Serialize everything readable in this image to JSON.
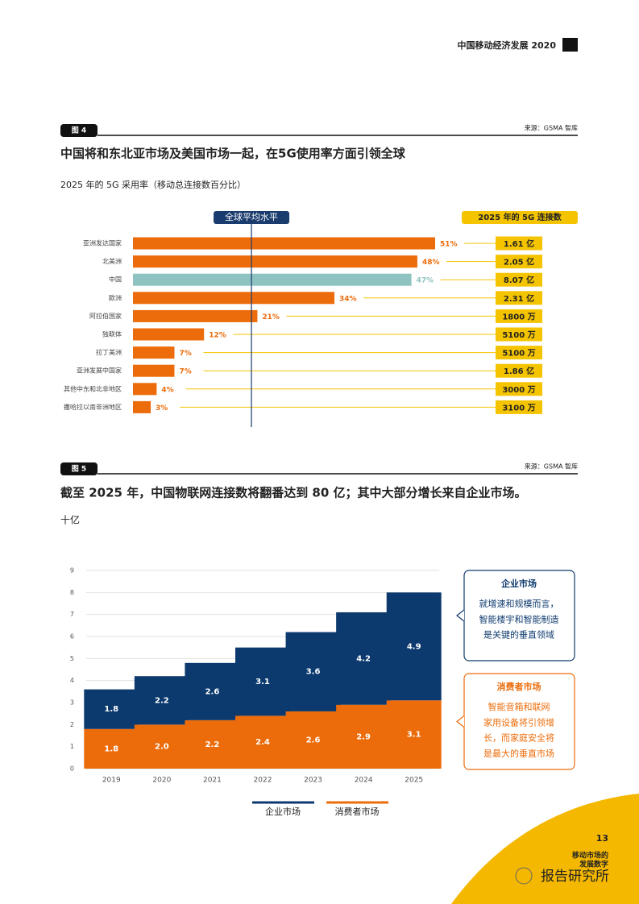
{
  "header": {
    "title": "中国移动经济发展 2020"
  },
  "chart_data": [
    {
      "type": "bar",
      "horizontal": true,
      "figure_label": "图 4",
      "source": "来源：GSMA 智库",
      "title": "中国将和东北亚市场及美国市场一起，在5G使用率方面引领全球",
      "subtitle": "2025 年的 5G 采用率（移动总连接数百分比）",
      "categories": [
        "亚洲发达国家",
        "北美洲",
        "中国",
        "欧洲",
        "阿拉伯国家",
        "独联体",
        "拉丁美洲",
        "亚洲发展中国家",
        "其他中东和北非地区",
        "撒哈拉以南非洲地区"
      ],
      "values": [
        51,
        48,
        47,
        34,
        21,
        12,
        7,
        7,
        4,
        3
      ],
      "value_labels": [
        "51%",
        "48%",
        "47%",
        "34%",
        "21%",
        "12%",
        "7%",
        "7%",
        "4%",
        "3%"
      ],
      "colors": [
        "#ec6c0b",
        "#ec6c0b",
        "#8fc3c1",
        "#ec6c0b",
        "#ec6c0b",
        "#ec6c0b",
        "#ec6c0b",
        "#ec6c0b",
        "#ec6c0b",
        "#ec6c0b"
      ],
      "xlim": [
        0,
        51
      ],
      "reference_line": {
        "label": "全球平均水平",
        "value": 20,
        "color": "#1a3b6e"
      },
      "right_column": {
        "title": "2025 年的 5G 连接数",
        "color": "#f5c400",
        "labels": [
          "1.61 亿",
          "2.05 亿",
          "8.07 亿",
          "2.31 亿",
          "1800 万",
          "5100 万",
          "5100 万",
          "1.86 亿",
          "3000 万",
          "3100 万"
        ]
      }
    },
    {
      "type": "bar",
      "stacked": true,
      "figure_label": "图 5",
      "source": "来源：GSMA 智库",
      "title": "截至 2025 年，中国物联网连接数将翻番达到 80 亿；其中大部分增长来自企业市场。",
      "y_label": "十亿",
      "categories": [
        "2019",
        "2020",
        "2021",
        "2022",
        "2023",
        "2024",
        "2025"
      ],
      "series": [
        {
          "name": "企业市场",
          "color": "#0d3a6e",
          "values": [
            1.8,
            2.2,
            2.6,
            3.1,
            3.6,
            4.2,
            4.9
          ]
        },
        {
          "name": "消费者市场",
          "color": "#ec6c0b",
          "values": [
            1.8,
            2.0,
            2.2,
            2.4,
            2.6,
            2.9,
            3.1
          ],
          "value_labels": [
            "1.8",
            "2.0",
            "2.2",
            "2.4",
            "2.6",
            "2.9",
            "3.1"
          ]
        }
      ],
      "ylim": [
        0,
        9
      ],
      "yticks": [
        0,
        1,
        2,
        3,
        4,
        5,
        6,
        7,
        8,
        9
      ],
      "grid": true,
      "annotations": [
        {
          "title": "企业市场",
          "lines": [
            "就增速和规模而言，",
            "智能楼宇和智能制造",
            "是关键的垂直领域"
          ]
        },
        {
          "title": "消费者市场",
          "lines": [
            "智能音箱和联网",
            "家用设备将引领增",
            "长，而家庭安全将",
            "是最大的垂直市场"
          ]
        }
      ]
    }
  ],
  "footer": {
    "page": "13",
    "section_lines": [
      "移动市场的",
      "发展数字"
    ]
  },
  "watermark": "报告研究所"
}
